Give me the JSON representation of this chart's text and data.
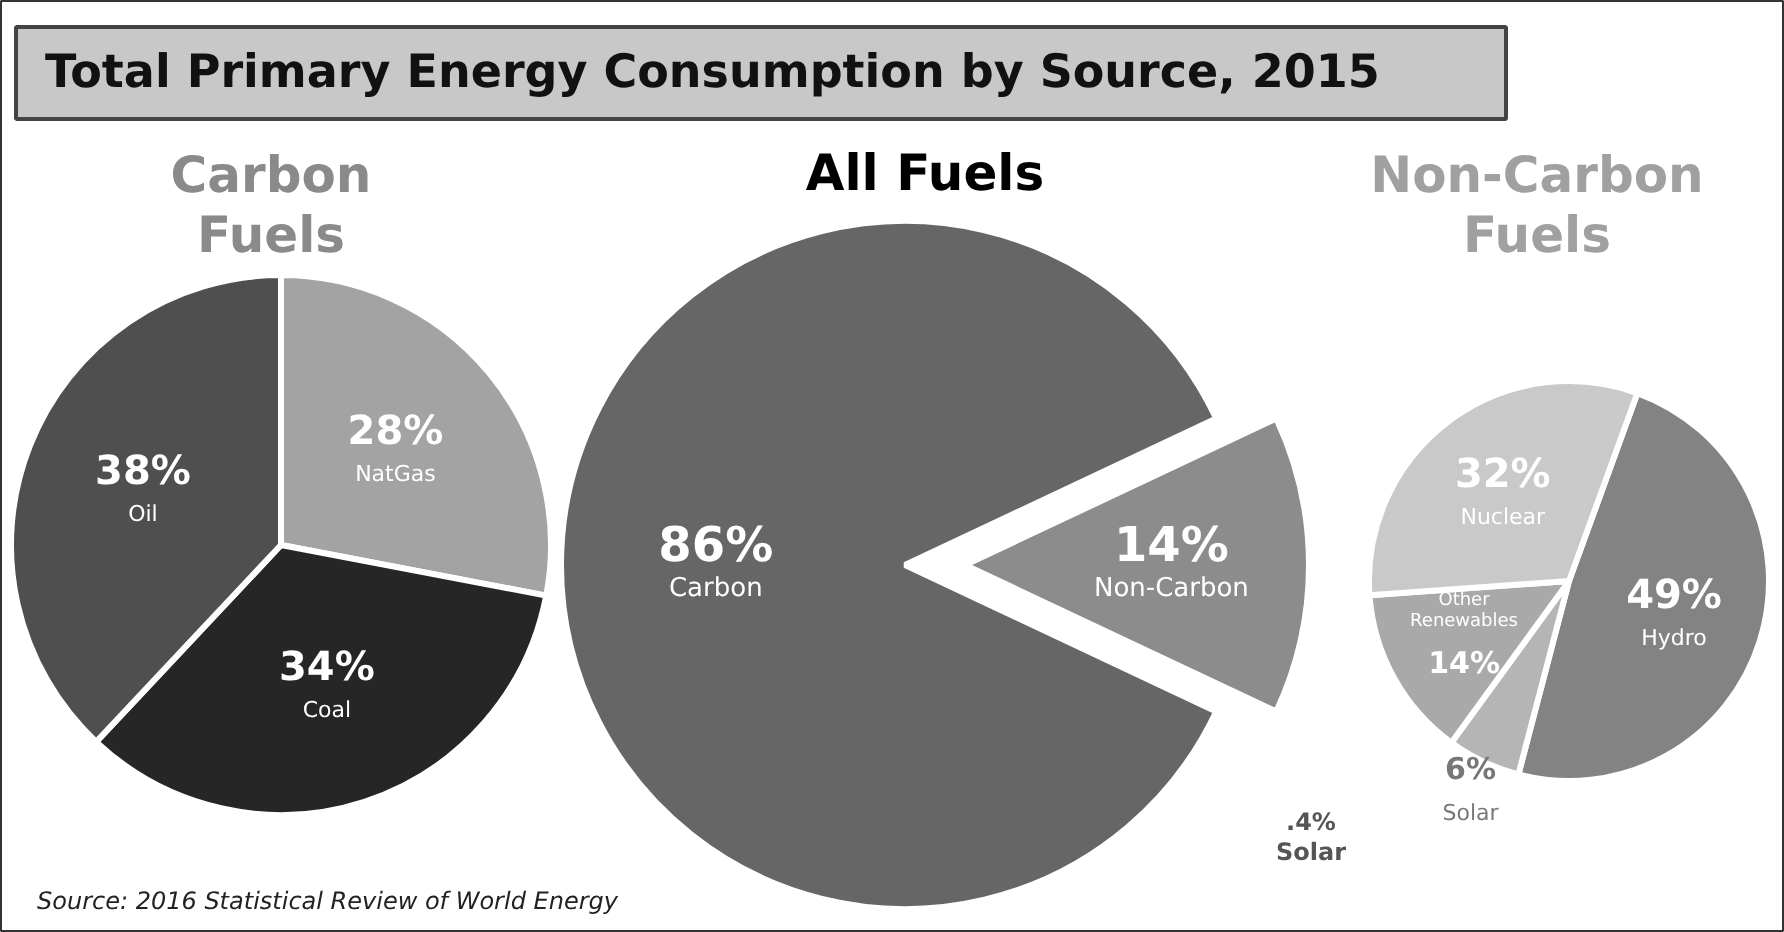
{
  "chart_data": [
    {
      "type": "pie",
      "title": "Total Primary Energy Consumption by Source, 2015",
      "subtitle": "Carbon Fuels",
      "categories": [
        "NatGas",
        "Coal",
        "Oil"
      ],
      "values": [
        28,
        34,
        38
      ],
      "value_labels": [
        "28%",
        "34%",
        "38%"
      ],
      "colors": [
        "#a3a3a3",
        "#262626",
        "#4f4f4f"
      ],
      "annotations": [
        "Source: 2016 Statistical Review of World Energy"
      ]
    },
    {
      "type": "pie",
      "subtitle": "All Fuels",
      "categories": [
        "Non-Carbon",
        "Carbon"
      ],
      "values": [
        14,
        86
      ],
      "value_labels": [
        "14%",
        "86%"
      ],
      "colors": [
        "#8c8c8c",
        "#666666"
      ],
      "annotations": [
        ".4%\nSolar"
      ]
    },
    {
      "type": "pie",
      "subtitle": "Non-Carbon Fuels",
      "categories": [
        "Hydro",
        "Solar",
        "Other Renewables",
        "Nuclear"
      ],
      "values": [
        49,
        6,
        14,
        32
      ],
      "value_labels": [
        "49%",
        "6%",
        "14%",
        "32%"
      ],
      "colors": [
        "#838383",
        "#b5b5b5",
        "#a9a9a9",
        "#c9c9c9"
      ]
    }
  ]
}
